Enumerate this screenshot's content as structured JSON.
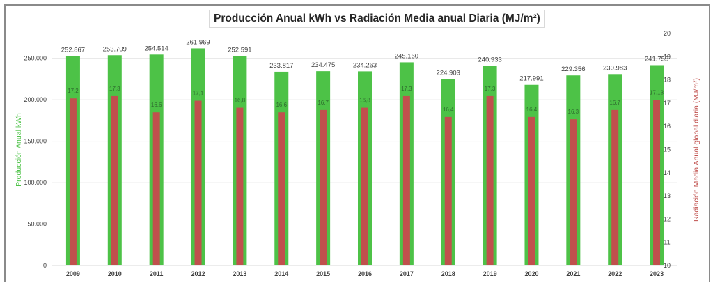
{
  "chart_data": {
    "type": "bar",
    "title": "Producción Anual kWh vs Radiación Media anual Diaria (MJ/m²)",
    "xlabel": "",
    "ylabel": "Producción Anual kWh",
    "y2label": "Radiación Media Anual global diaria (MJ/m²)",
    "categories": [
      "2009",
      "2010",
      "2011",
      "2012",
      "2013",
      "2014",
      "2015",
      "2016",
      "2017",
      "2018",
      "2019",
      "2020",
      "2021",
      "2022",
      "2023"
    ],
    "series": [
      {
        "name": "Producción Anual kWh",
        "axis": "left",
        "color": "#4dc247",
        "values": [
          252867,
          253709,
          254514,
          261969,
          252591,
          233817,
          234475,
          234263,
          245160,
          224903,
          240933,
          217991,
          229356,
          230983,
          241753
        ],
        "labels": [
          "252.867",
          "253.709",
          "254.514",
          "261.969",
          "252.591",
          "233.817",
          "234.475",
          "234.263",
          "245.160",
          "224.903",
          "240.933",
          "217.991",
          "229.356",
          "230.983",
          "241.753"
        ]
      },
      {
        "name": "Radiación Media Anual global diaria (MJ/m²)",
        "axis": "right",
        "color": "#c0504d",
        "values": [
          17.2,
          17.3,
          16.6,
          17.1,
          16.8,
          16.6,
          16.7,
          16.8,
          17.3,
          16.4,
          17.3,
          16.4,
          16.3,
          16.7,
          17.13
        ],
        "labels": [
          "17,2",
          "17,3",
          "16,6",
          "17,1",
          "16,8",
          "16,6",
          "16,7",
          "16,8",
          "17,3",
          "16,4",
          "17,3",
          "16,4",
          "16,3",
          "16,7",
          "17,13"
        ]
      }
    ],
    "ylim": [
      0,
      280000
    ],
    "yticks": [
      0,
      50000,
      100000,
      150000,
      200000,
      250000
    ],
    "ytick_labels": [
      "0",
      "50.000",
      "100.000",
      "150.000",
      "200.000",
      "250.000"
    ],
    "y2lim": [
      10,
      20
    ],
    "y2ticks": [
      10,
      11,
      12,
      13,
      14,
      15,
      16,
      17,
      18,
      19,
      20
    ],
    "y2tick_labels": [
      "10",
      "11",
      "12",
      "13",
      "14",
      "15",
      "16",
      "17",
      "18",
      "19",
      "20"
    ],
    "grid": true,
    "legend": "none"
  }
}
